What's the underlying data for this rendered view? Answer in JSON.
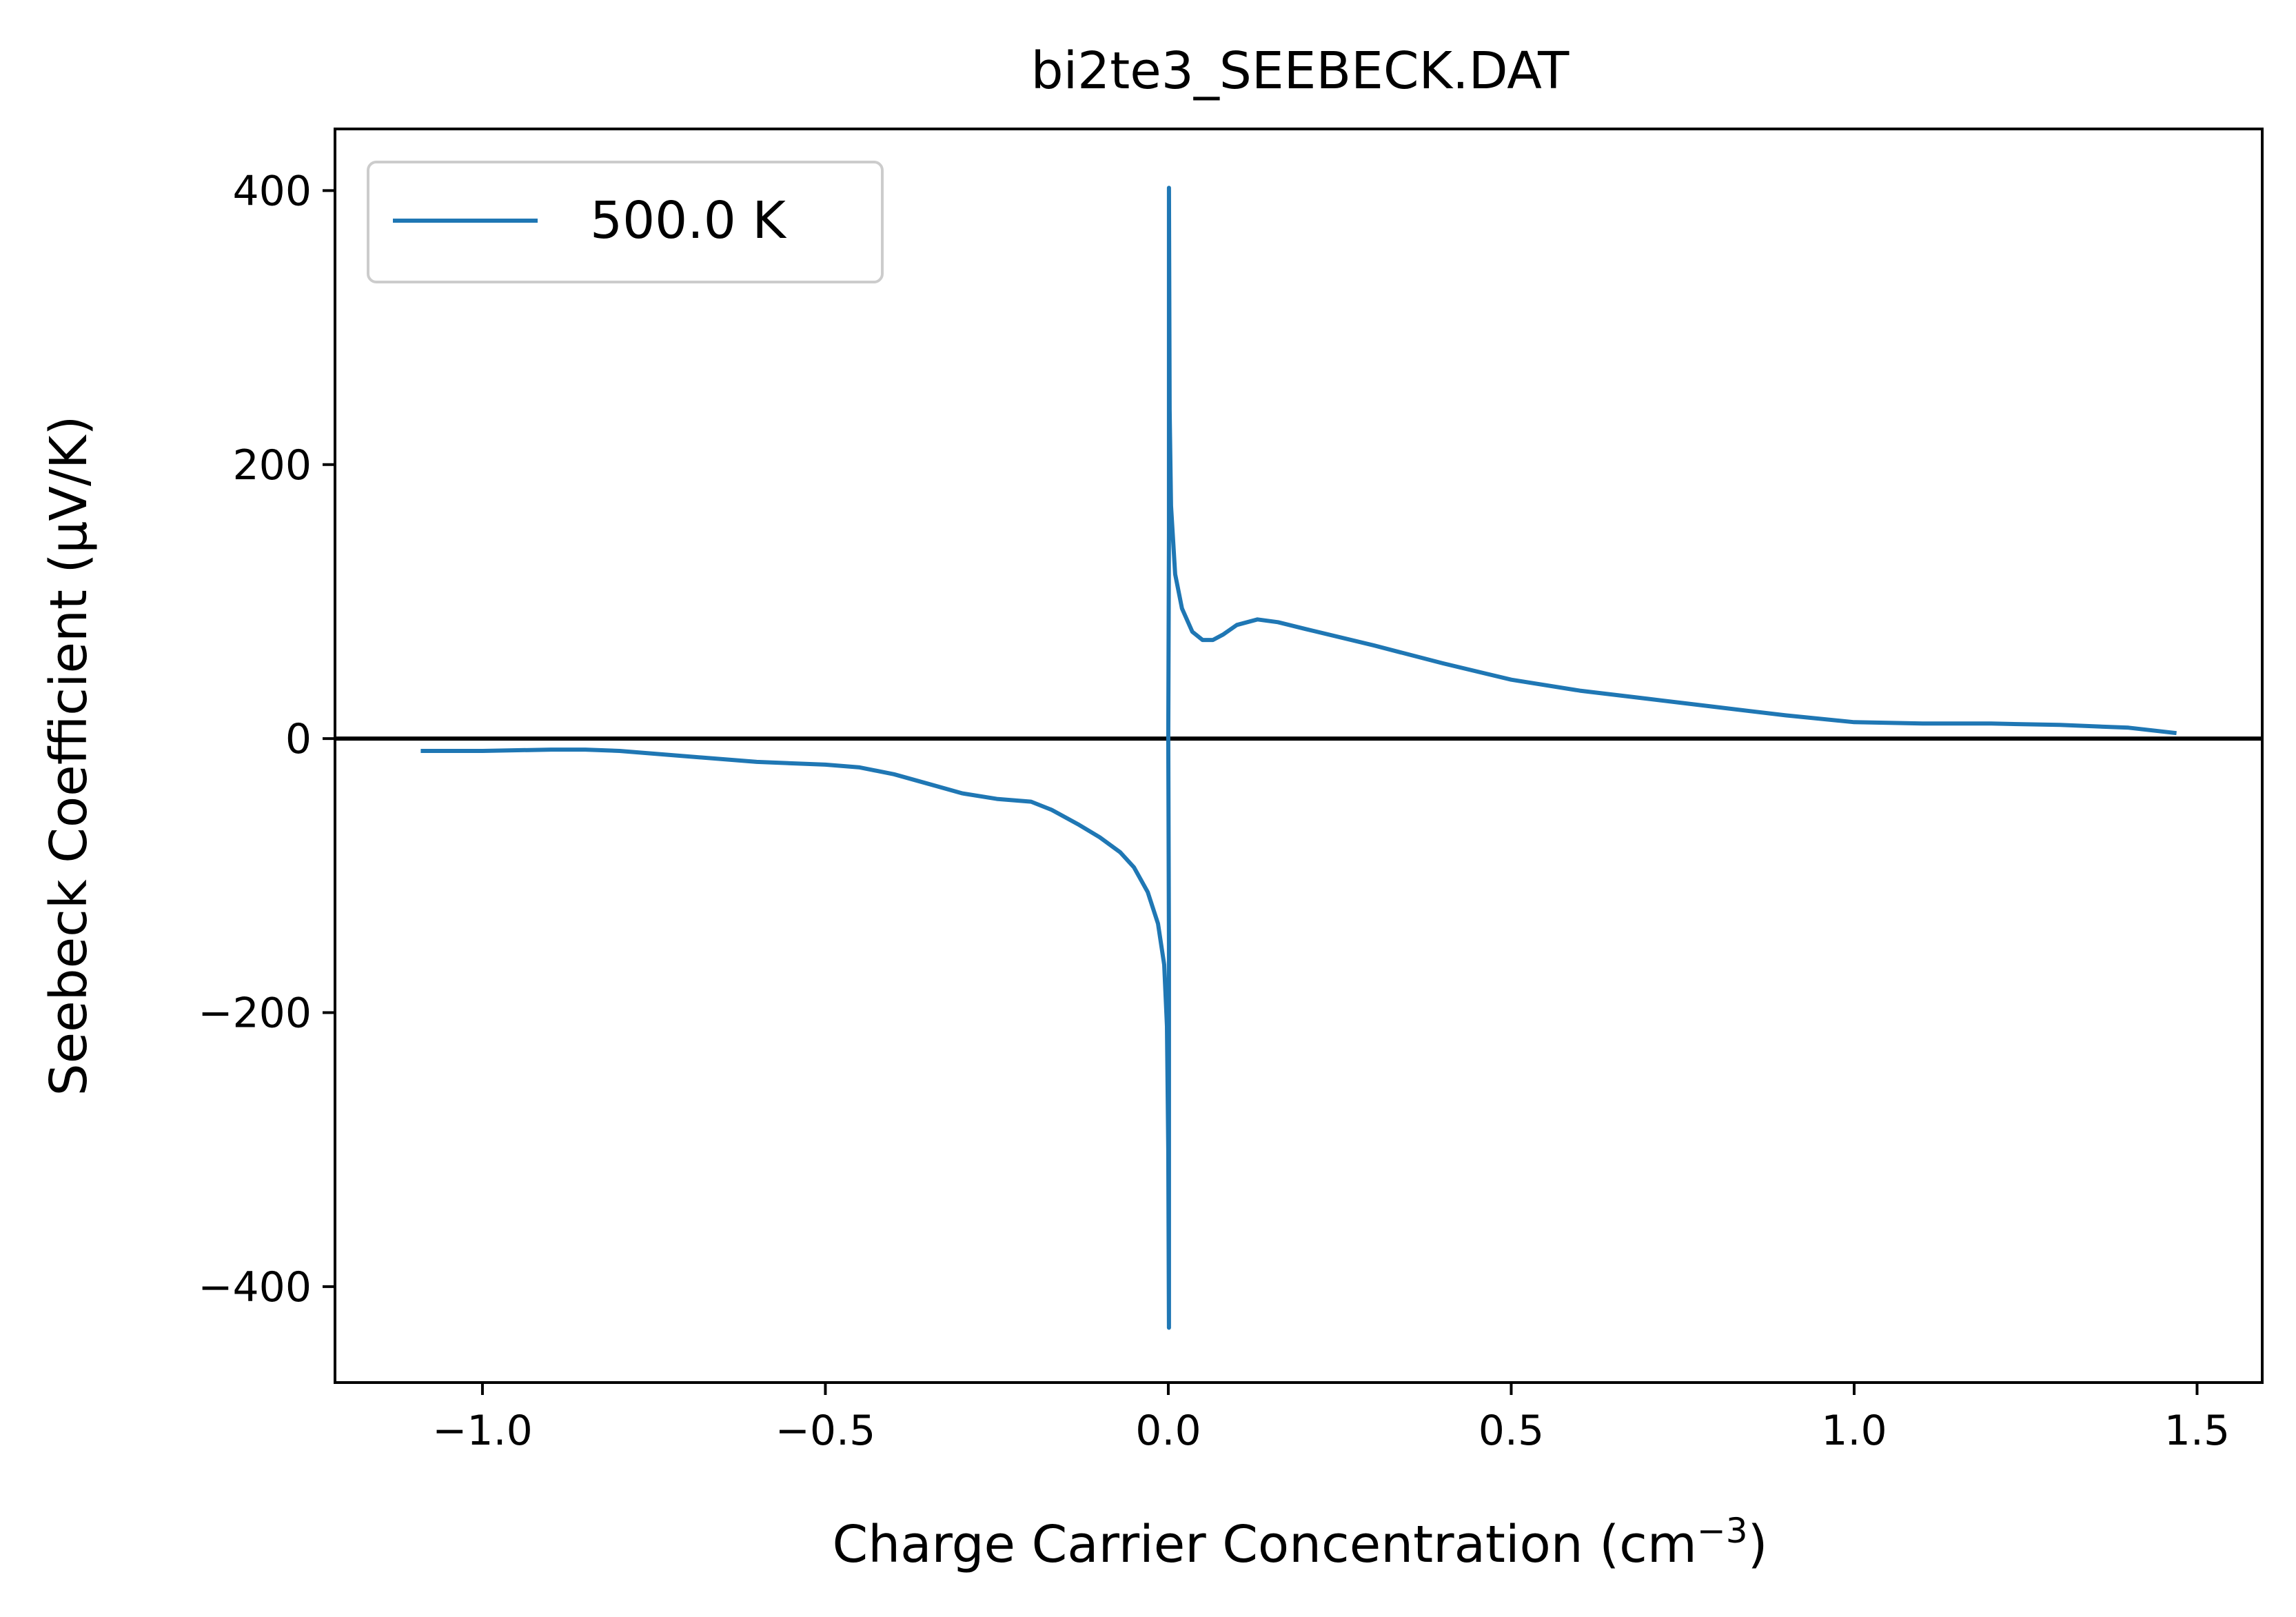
{
  "chart_data": {
    "type": "line",
    "title": "bi2te3_SEEBECK.DAT",
    "xlabel": "Charge Carrier Concentration (cm",
    "xlabel_superscript": "−3",
    "xlabel_close": ")",
    "ylabel": "Seebeck Coefficient (μV/K)",
    "xlim": [
      -1.215,
      1.595
    ],
    "ylim": [
      -470,
      445
    ],
    "x_ticks": [
      -1.0,
      -0.5,
      0.0,
      0.5,
      1.0,
      1.5
    ],
    "x_tick_labels": [
      "−1.0",
      "−0.5",
      "0.0",
      "0.5",
      "1.0",
      "1.5"
    ],
    "y_ticks": [
      -400,
      -200,
      0,
      200,
      400
    ],
    "y_tick_labels": [
      "−400",
      "−200",
      "0",
      "200",
      "400"
    ],
    "grid": false,
    "legend_position": "top-left",
    "reference_line": {
      "y": 0,
      "color": "#000000"
    },
    "series": [
      {
        "name": "500.0 K",
        "color": "#1f77b4",
        "points": [
          [
            -1.09,
            -9
          ],
          [
            -1.0,
            -9
          ],
          [
            -0.9,
            -8
          ],
          [
            -0.85,
            -8
          ],
          [
            -0.8,
            -9
          ],
          [
            -0.7,
            -13
          ],
          [
            -0.6,
            -17
          ],
          [
            -0.5,
            -19
          ],
          [
            -0.45,
            -21
          ],
          [
            -0.4,
            -26
          ],
          [
            -0.35,
            -33
          ],
          [
            -0.3,
            -40
          ],
          [
            -0.25,
            -44
          ],
          [
            -0.2,
            -46
          ],
          [
            -0.17,
            -52
          ],
          [
            -0.13,
            -63
          ],
          [
            -0.1,
            -72
          ],
          [
            -0.07,
            -83
          ],
          [
            -0.05,
            -94
          ],
          [
            -0.03,
            -112
          ],
          [
            -0.015,
            -135
          ],
          [
            -0.006,
            -165
          ],
          [
            -0.002,
            -210
          ],
          [
            0.0,
            -300
          ],
          [
            0.001,
            -430
          ],
          [
            0.001,
            -150
          ],
          [
            0.0,
            0
          ],
          [
            0.001,
            150
          ],
          [
            0.001,
            402
          ],
          [
            0.002,
            240
          ],
          [
            0.004,
            170
          ],
          [
            0.01,
            120
          ],
          [
            0.02,
            95
          ],
          [
            0.035,
            78
          ],
          [
            0.05,
            72
          ],
          [
            0.065,
            72
          ],
          [
            0.08,
            76
          ],
          [
            0.1,
            83
          ],
          [
            0.13,
            87
          ],
          [
            0.16,
            85
          ],
          [
            0.2,
            80
          ],
          [
            0.3,
            68
          ],
          [
            0.4,
            55
          ],
          [
            0.5,
            43
          ],
          [
            0.6,
            35
          ],
          [
            0.7,
            29
          ],
          [
            0.8,
            23
          ],
          [
            0.9,
            17
          ],
          [
            1.0,
            12
          ],
          [
            1.1,
            11
          ],
          [
            1.2,
            11
          ],
          [
            1.3,
            10
          ],
          [
            1.4,
            8
          ],
          [
            1.47,
            4
          ]
        ]
      }
    ]
  }
}
